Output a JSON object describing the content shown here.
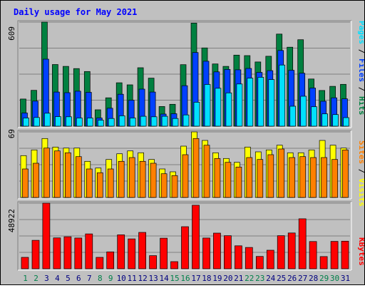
{
  "title": "Daily usage for May 2021",
  "colors": {
    "hits": "#008040",
    "files": "#0040ff",
    "pages": "#00e0ff",
    "visits": "#ffff00",
    "sites": "#ff8000",
    "kbytes": "#ff0000",
    "title": "#0000ff",
    "weekend": "#00804a",
    "weekday": "#000080"
  },
  "chart_data": [
    {
      "type": "bar",
      "panel": "top",
      "title": "Daily usage for May 2021",
      "ylabel_max": "609",
      "ylim": [
        0,
        609
      ],
      "grid": true,
      "legend": [
        {
          "name": "Pages",
          "color": "#00e0ff"
        },
        {
          "name": "Files",
          "color": "#0040ff"
        },
        {
          "name": "Hits",
          "color": "#008040"
        }
      ],
      "legend_position": "right, vertical",
      "categories": [
        "1",
        "2",
        "3",
        "4",
        "5",
        "6",
        "7",
        "8",
        "9",
        "10",
        "11",
        "12",
        "13",
        "14",
        "15",
        "16",
        "17",
        "18",
        "19",
        "20",
        "21",
        "22",
        "23",
        "24",
        "25",
        "26",
        "27",
        "28",
        "29",
        "30",
        "31"
      ],
      "weekend_days": [
        "1",
        "2",
        "8",
        "9",
        "15",
        "16",
        "22",
        "23",
        "29",
        "30"
      ],
      "series": [
        {
          "name": "Hits",
          "values": [
            159,
            210,
            609,
            361,
            350,
            337,
            320,
            96,
            166,
            254,
            242,
            342,
            281,
            115,
            128,
            360,
            603,
            458,
            364,
            350,
            416,
            413,
            376,
            409,
            539,
            462,
            506,
            276,
            209,
            233,
            245
          ]
        },
        {
          "name": "Files",
          "values": [
            77,
            147,
            392,
            200,
            196,
            205,
            198,
            48,
            105,
            187,
            152,
            217,
            200,
            71,
            73,
            237,
            431,
            380,
            318,
            332,
            330,
            338,
            315,
            325,
            443,
            327,
            310,
            223,
            146,
            166,
            160
          ]
        },
        {
          "name": "Pages",
          "values": [
            48,
            51,
            76,
            56,
            55,
            48,
            48,
            35,
            45,
            61,
            48,
            58,
            55,
            58,
            45,
            66,
            140,
            244,
            222,
            195,
            247,
            281,
            286,
            273,
            358,
            117,
            175,
            114,
            72,
            68,
            50
          ]
        }
      ]
    },
    {
      "type": "bar",
      "panel": "middle",
      "ylabel_max": "69",
      "ylim": [
        0,
        69
      ],
      "grid": true,
      "legend": [
        {
          "name": "Sites",
          "color": "#ff8000"
        },
        {
          "name": "Visits",
          "color": "#ffff00"
        }
      ],
      "legend_position": "right, vertical",
      "categories": [
        "1",
        "2",
        "3",
        "4",
        "5",
        "6",
        "7",
        "8",
        "9",
        "10",
        "11",
        "12",
        "13",
        "14",
        "15",
        "16",
        "17",
        "18",
        "19",
        "20",
        "21",
        "22",
        "23",
        "24",
        "25",
        "26",
        "27",
        "28",
        "29",
        "30",
        "31"
      ],
      "series": [
        {
          "name": "Visits",
          "values": [
            44,
            50,
            62,
            53,
            52,
            52,
            38,
            31,
            40,
            46,
            49,
            47,
            40,
            30,
            27,
            54,
            69,
            60,
            47,
            41,
            37,
            53,
            48,
            50,
            55,
            47,
            47,
            50,
            60,
            55,
            52
          ]
        },
        {
          "name": "Sites",
          "values": [
            30,
            36,
            52,
            49,
            47,
            43,
            30,
            26,
            30,
            38,
            42,
            38,
            36,
            25,
            23,
            45,
            62,
            55,
            41,
            37,
            32,
            42,
            40,
            45,
            51,
            42,
            43,
            42,
            42,
            40,
            50
          ]
        }
      ]
    },
    {
      "type": "bar",
      "panel": "bottom",
      "ylabel_max": "48922",
      "ylim": [
        0,
        48922
      ],
      "grid": true,
      "legend": [
        {
          "name": "KBytes",
          "color": "#ff0000"
        }
      ],
      "legend_position": "right, vertical",
      "categories": [
        "1",
        "2",
        "3",
        "4",
        "5",
        "6",
        "7",
        "8",
        "9",
        "10",
        "11",
        "12",
        "13",
        "14",
        "15",
        "16",
        "17",
        "18",
        "19",
        "20",
        "21",
        "22",
        "23",
        "24",
        "25",
        "26",
        "27",
        "28",
        "29",
        "30",
        "31"
      ],
      "series": [
        {
          "name": "KBytes",
          "values": [
            8500,
            21200,
            48922,
            23000,
            23900,
            22900,
            26000,
            8500,
            12600,
            25300,
            22300,
            27100,
            9800,
            22800,
            5300,
            31400,
            47400,
            22900,
            26600,
            24700,
            17100,
            15900,
            9200,
            13800,
            24700,
            26700,
            37300,
            20300,
            9100,
            20400,
            20600
          ]
        }
      ]
    }
  ]
}
